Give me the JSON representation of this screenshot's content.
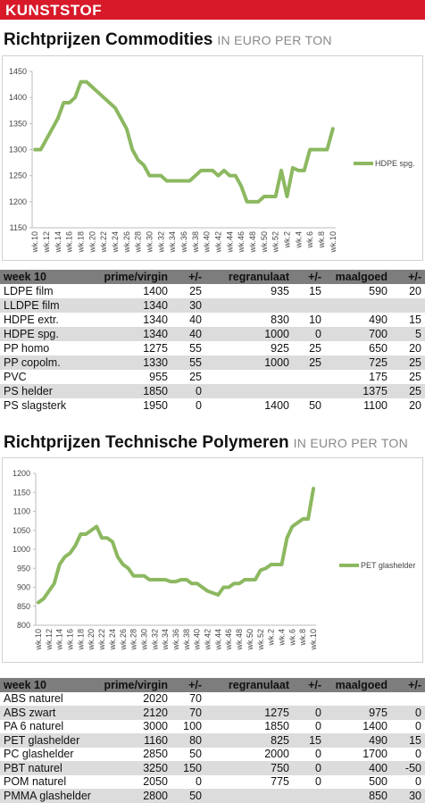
{
  "header": {
    "label": "KUNSTSTOF"
  },
  "sections": [
    {
      "title": "Richtprijzen Commodities",
      "subtitle": "IN EURO PER TON",
      "table": {
        "columns": [
          "week 10",
          "prime/virgin",
          "+/-",
          "regranulaat",
          "+/-",
          "maalgoed",
          "+/-"
        ],
        "rows": [
          [
            "LDPE film",
            1400,
            25,
            935,
            15,
            590,
            20
          ],
          [
            "LLDPE film",
            1340,
            30,
            null,
            null,
            null,
            null
          ],
          [
            "HDPE extr.",
            1340,
            40,
            830,
            10,
            490,
            15
          ],
          [
            "HDPE spg.",
            1340,
            40,
            1000,
            0,
            700,
            5
          ],
          [
            "PP homo",
            1275,
            55,
            925,
            25,
            650,
            20
          ],
          [
            "PP copolm.",
            1330,
            55,
            1000,
            25,
            725,
            25
          ],
          [
            "PVC",
            955,
            25,
            null,
            null,
            175,
            25
          ],
          [
            "PS helder",
            1850,
            0,
            null,
            null,
            1375,
            25
          ],
          [
            "PS slagsterk",
            1950,
            0,
            1400,
            50,
            1100,
            20
          ]
        ]
      }
    },
    {
      "title": "Richtprijzen Technische Polymeren",
      "subtitle": "IN EURO PER TON",
      "table": {
        "columns": [
          "week 10",
          "prime/virgin",
          "+/-",
          "regranulaat",
          "+/-",
          "maalgoed",
          "+/-"
        ],
        "rows": [
          [
            "ABS naturel",
            2020,
            70,
            null,
            null,
            null,
            null
          ],
          [
            "ABS zwart",
            2120,
            70,
            1275,
            0,
            975,
            0
          ],
          [
            "PA 6 naturel",
            3000,
            100,
            1850,
            0,
            1400,
            0
          ],
          [
            "PET glashelder",
            1160,
            80,
            825,
            15,
            490,
            15
          ],
          [
            "PC glashelder",
            2850,
            50,
            2000,
            0,
            1700,
            0
          ],
          [
            "PBT naturel",
            3250,
            150,
            750,
            0,
            400,
            -50
          ],
          [
            "POM naturel",
            2050,
            0,
            775,
            0,
            500,
            0
          ],
          [
            "PMMA glashelder",
            2800,
            50,
            null,
            null,
            850,
            30
          ]
        ]
      }
    }
  ],
  "chart_data": [
    {
      "type": "line",
      "grid": false,
      "categories": [
        "wk.10",
        null,
        "wk.12",
        null,
        "wk.14",
        null,
        "wk.16",
        null,
        "wk.18",
        null,
        "wk.20",
        null,
        "wk.22",
        null,
        "wk.24",
        null,
        "wk.26",
        null,
        "wk.28",
        null,
        "wk.30",
        null,
        "wk.32",
        null,
        "wk.34",
        null,
        "wk.36",
        null,
        "wk.38",
        null,
        "wk.40",
        null,
        "wk.42",
        null,
        "wk.44",
        null,
        "wk.46",
        null,
        "wk.48",
        null,
        "wk.50",
        null,
        "wk.52",
        null,
        "wk.2",
        null,
        "wk.4",
        null,
        "wk.6",
        null,
        "wk.8",
        null,
        "wk.10"
      ],
      "ylim": [
        1150,
        1450
      ],
      "yticks": [
        1150,
        1200,
        1250,
        1300,
        1350,
        1400,
        1450
      ],
      "series": [
        {
          "name": "HDPE spg.",
          "color": "#8cb860",
          "values": [
            1300,
            1300,
            1320,
            1340,
            1360,
            1390,
            1390,
            1400,
            1430,
            1430,
            1420,
            1410,
            1400,
            1390,
            1380,
            1360,
            1340,
            1300,
            1280,
            1270,
            1250,
            1250,
            1250,
            1240,
            1240,
            1240,
            1240,
            1240,
            1250,
            1260,
            1260,
            1260,
            1250,
            1260,
            1250,
            1250,
            1230,
            1200,
            1200,
            1200,
            1210,
            1210,
            1210,
            1260,
            1210,
            1265,
            1260,
            1260,
            1300,
            1300,
            1300,
            1300,
            1340
          ]
        }
      ]
    },
    {
      "type": "line",
      "grid": false,
      "categories": [
        "wk.10",
        null,
        "wk.12",
        null,
        "wk.14",
        null,
        "wk.16",
        null,
        "wk.18",
        null,
        "wk.20",
        null,
        "wk.22",
        null,
        "wk.24",
        null,
        "wk.26",
        null,
        "wk.28",
        null,
        "wk.30",
        null,
        "wk.32",
        null,
        "wk.34",
        null,
        "wk.36",
        null,
        "wk.38",
        null,
        "wk.40",
        null,
        "wk.42",
        null,
        "wk.44",
        null,
        "wk.46",
        null,
        "wk.48",
        null,
        "wk.50",
        null,
        "wk.52",
        null,
        "wk.2",
        null,
        "wk.4",
        null,
        "wk.6",
        null,
        "wk.8",
        null,
        "wk.10"
      ],
      "ylim": [
        800,
        1200
      ],
      "yticks": [
        800,
        850,
        900,
        950,
        1000,
        1050,
        1100,
        1150,
        1200
      ],
      "series": [
        {
          "name": "PET glashelder",
          "color": "#8cb860",
          "values": [
            860,
            870,
            890,
            910,
            960,
            980,
            990,
            1010,
            1040,
            1040,
            1050,
            1060,
            1030,
            1030,
            1020,
            980,
            960,
            950,
            930,
            930,
            930,
            920,
            920,
            920,
            920,
            915,
            915,
            920,
            920,
            910,
            910,
            900,
            890,
            885,
            880,
            900,
            900,
            910,
            910,
            920,
            920,
            920,
            945,
            950,
            960,
            960,
            960,
            1030,
            1060,
            1070,
            1080,
            1080,
            1160
          ]
        }
      ]
    }
  ]
}
